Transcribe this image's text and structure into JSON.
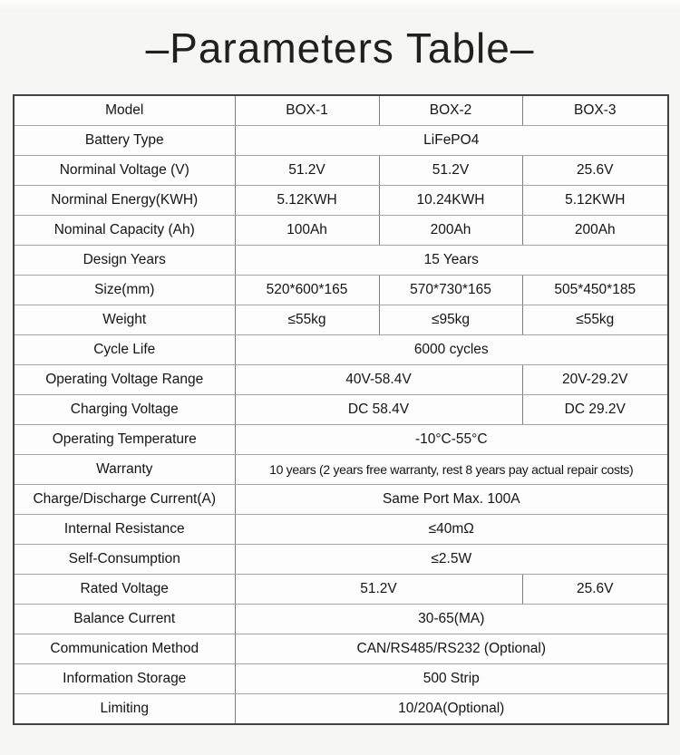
{
  "title": "–Parameters Table–",
  "table": {
    "header": {
      "model_label": "Model",
      "box1": "BOX-1",
      "box2": "BOX-2",
      "box3": "BOX-3"
    },
    "rows": {
      "battery_type": {
        "label": "Battery Type",
        "value": "LiFePO4"
      },
      "norminal_voltage": {
        "label": "Norminal Voltage (V)",
        "box1": "51.2V",
        "box2": "51.2V",
        "box3": "25.6V"
      },
      "norminal_energy": {
        "label": "Norminal Energy(KWH)",
        "box1": "5.12KWH",
        "box2": "10.24KWH",
        "box3": "5.12KWH"
      },
      "nominal_capacity": {
        "label": "Nominal Capacity (Ah)",
        "box1": "100Ah",
        "box2": "200Ah",
        "box3": "200Ah"
      },
      "design_years": {
        "label": "Design Years",
        "value": "15 Years"
      },
      "size": {
        "label": "Size(mm)",
        "box1": "520*600*165",
        "box2": "570*730*165",
        "box3": "505*450*185"
      },
      "weight": {
        "label": "Weight",
        "box1": "≤55kg",
        "box2": "≤95kg",
        "box3": "≤55kg"
      },
      "cycle_life": {
        "label": "Cycle Life",
        "value": "6000 cycles"
      },
      "operating_voltage_range": {
        "label": "Operating Voltage Range",
        "box12": "40V-58.4V",
        "box3": "20V-29.2V"
      },
      "charging_voltage": {
        "label": "Charging Voltage",
        "box12": "DC 58.4V",
        "box3": "DC 29.2V"
      },
      "operating_temperature": {
        "label": "Operating Temperature",
        "value": "-10°C-55°C"
      },
      "warranty": {
        "label": "Warranty",
        "value": "10 years (2 years free warranty, rest 8 years pay actual repair costs)"
      },
      "charge_discharge_current": {
        "label": "Charge/Discharge Current(A)",
        "value": "Same Port Max. 100A"
      },
      "internal_resistance": {
        "label": "Internal Resistance",
        "value": "≤40mΩ"
      },
      "self_consumption": {
        "label": "Self-Consumption",
        "value": "≤2.5W"
      },
      "rated_voltage": {
        "label": "Rated Voltage",
        "box12": "51.2V",
        "box3": "25.6V"
      },
      "balance_current": {
        "label": "Balance Current",
        "value": "30-65(MA)"
      },
      "communication_method": {
        "label": "Communication Method",
        "value": "CAN/RS485/RS232 (Optional)"
      },
      "information_storage": {
        "label": "Information Storage",
        "value": "500 Strip"
      },
      "limiting": {
        "label": "Limiting",
        "value": "10/20A(Optional)"
      }
    }
  },
  "colors": {
    "page_background": "#f6f6f4",
    "cell_background": "#fdfdfd",
    "outer_border": "#414141",
    "inner_border_vertical": "#7d7d7d",
    "inner_border_horizontal": "#a6a6a6",
    "text": "#141414"
  }
}
